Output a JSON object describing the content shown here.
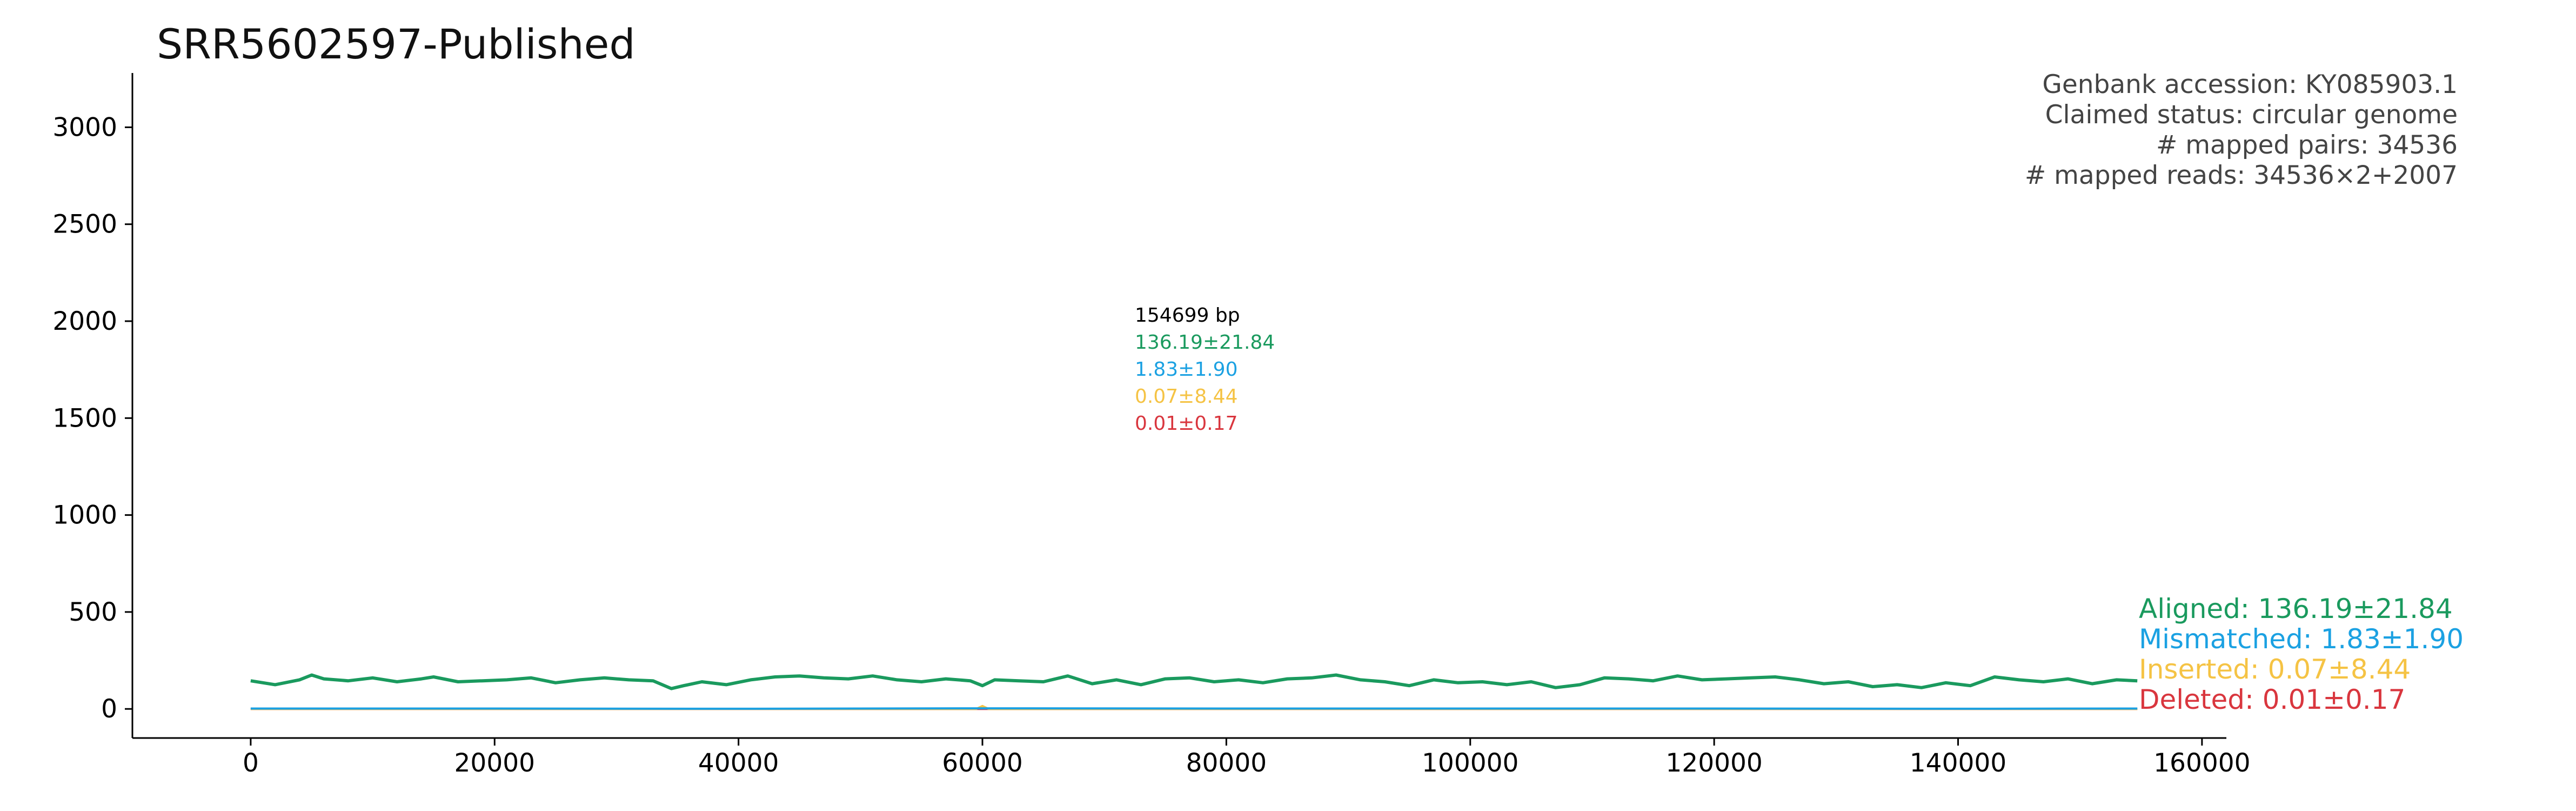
{
  "colors": {
    "aligned": "#1a9a5e",
    "mismatched": "#1ba1e2",
    "inserted": "#f5c344",
    "deleted": "#d9363e",
    "bp_label": "#000000"
  },
  "annotations": [
    "Genbank accession: KY085903.1",
    "Claimed status: circular genome",
    "# mapped pairs: 34536",
    "# mapped reads: 34536×2+2007"
  ],
  "center_labels": {
    "length": "154699 bp",
    "aligned": "136.19±21.84",
    "mismatched": "1.83±1.90",
    "inserted": "0.07±8.44",
    "deleted": "0.01±0.17"
  },
  "chart_data": {
    "type": "line",
    "title": "SRR5602597-Published",
    "xlabel": "",
    "ylabel": "",
    "xlim": [
      -9700,
      162000
    ],
    "ylim": [
      -150,
      3280
    ],
    "x_ticks": [
      0,
      20000,
      40000,
      60000,
      80000,
      100000,
      120000,
      140000,
      160000
    ],
    "y_ticks": [
      0,
      500,
      1000,
      1500,
      2000,
      2500,
      3000
    ],
    "x_tick_labels": [
      "0",
      "20000",
      "40000",
      "60000",
      "80000",
      "100000",
      "120000",
      "140000",
      "160000"
    ],
    "y_tick_labels": [
      "0",
      "500",
      "1000",
      "1500",
      "2000",
      "2500",
      "3000"
    ],
    "genome_length": 154699,
    "grid": false,
    "legend_position": "right",
    "series": [
      {
        "name": "Aligned",
        "legend_label": "Aligned: 136.19±21.84",
        "color": "#1a9a5e",
        "x": [
          0,
          2000,
          4000,
          5000,
          6000,
          8000,
          10000,
          12000,
          14000,
          15000,
          17000,
          19000,
          21000,
          23000,
          25000,
          27000,
          29000,
          31000,
          33000,
          34500,
          35500,
          37000,
          39000,
          41000,
          43000,
          45000,
          47000,
          49000,
          51000,
          53000,
          55000,
          57000,
          59000,
          60000,
          61000,
          63000,
          65000,
          67000,
          69000,
          71000,
          73000,
          75000,
          77000,
          79000,
          81000,
          83000,
          85000,
          87000,
          89000,
          91000,
          93000,
          95000,
          97000,
          99000,
          101000,
          103000,
          105000,
          107000,
          109000,
          111000,
          113000,
          115000,
          117000,
          119000,
          121000,
          123000,
          125000,
          127000,
          129000,
          131000,
          133000,
          135000,
          137000,
          139000,
          141000,
          143000,
          145000,
          147000,
          149000,
          151000,
          153000,
          154699
        ],
        "values": [
          145,
          125,
          150,
          175,
          155,
          145,
          160,
          140,
          155,
          165,
          140,
          145,
          150,
          160,
          135,
          150,
          160,
          150,
          145,
          105,
          120,
          140,
          125,
          150,
          165,
          170,
          160,
          155,
          170,
          150,
          140,
          155,
          145,
          120,
          150,
          145,
          140,
          170,
          130,
          150,
          125,
          155,
          160,
          140,
          150,
          135,
          155,
          160,
          175,
          150,
          140,
          120,
          150,
          135,
          140,
          125,
          140,
          110,
          125,
          160,
          155,
          145,
          170,
          150,
          155,
          160,
          165,
          150,
          130,
          140,
          115,
          125,
          110,
          135,
          120,
          165,
          150,
          140,
          155,
          130,
          150,
          145
        ]
      },
      {
        "name": "Mismatched",
        "legend_label": "Mismatched: 1.83±1.90",
        "color": "#1ba1e2",
        "x": [
          0,
          20000,
          40000,
          60000,
          80000,
          100000,
          120000,
          140000,
          154699
        ],
        "values": [
          2,
          2,
          1,
          3,
          2,
          2,
          2,
          1,
          2
        ]
      },
      {
        "name": "Inserted",
        "legend_label": "Inserted: 0.07±8.44",
        "color": "#f5c344",
        "x": [
          0,
          20000,
          40000,
          59500,
          60000,
          60500,
          80000,
          100000,
          120000,
          140000,
          154699
        ],
        "values": [
          0,
          0,
          0,
          0,
          15,
          0,
          0,
          0,
          0,
          0,
          0
        ]
      },
      {
        "name": "Deleted",
        "legend_label": "Deleted: 0.01±0.17",
        "color": "#d9363e",
        "x": [
          0,
          40000,
          80000,
          120000,
          154699
        ],
        "values": [
          0,
          0,
          0,
          0,
          0
        ]
      }
    ]
  }
}
